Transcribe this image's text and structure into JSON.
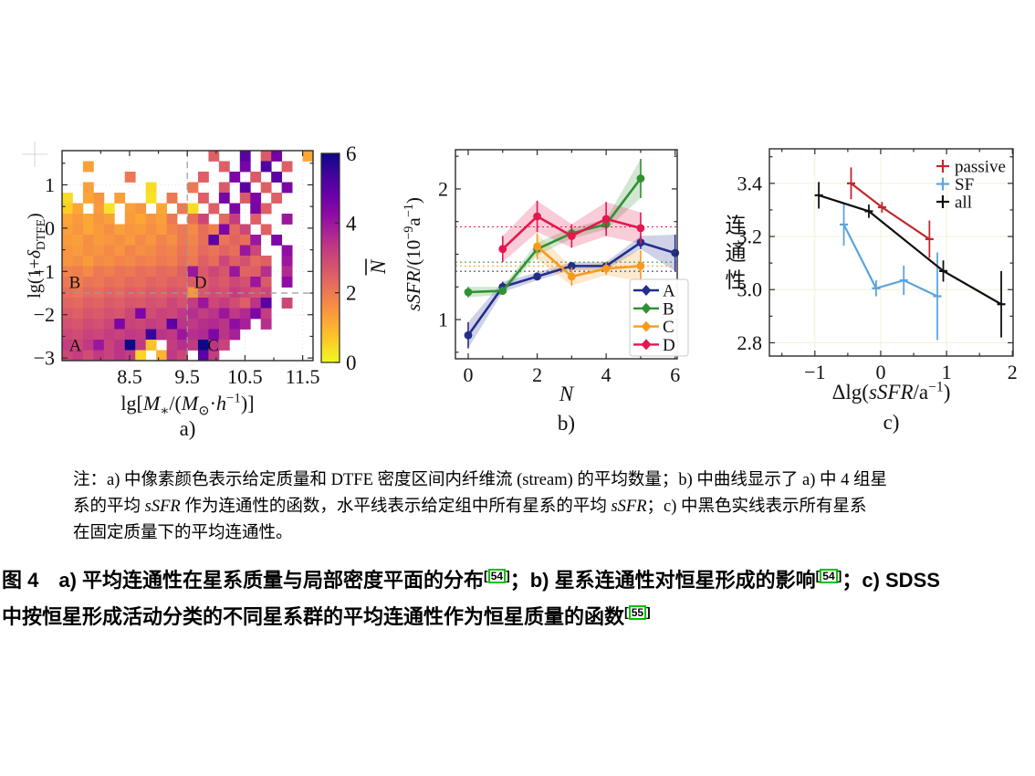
{
  "page": {
    "background": "#ffffff"
  },
  "chart_data": [
    {
      "type": "heatmap",
      "panel_label": "a)",
      "xlabel_text": "lg[M∗/(M⊙·h−1)]",
      "xlabel_parts": [
        {
          "t": "lg["
        },
        {
          "t": "M",
          "i": true
        },
        {
          "t": "∗",
          "sub": true
        },
        {
          "t": "/("
        },
        {
          "t": "M",
          "i": true
        },
        {
          "t": "⊙",
          "sub": true
        },
        {
          "t": "·"
        },
        {
          "t": "h",
          "i": true
        },
        {
          "t": "−1",
          "sup": true
        },
        {
          "t": ")]"
        }
      ],
      "ylabel_text": "lg(1+δDTFE)",
      "ylabel_parts": [
        {
          "t": "lg(1+"
        },
        {
          "t": "δ",
          "i": true
        },
        {
          "t": "DTFE",
          "sub": true
        },
        {
          "t": ")"
        }
      ],
      "xlim": [
        7.33,
        11.68
      ],
      "ylim": [
        -3.06,
        1.79
      ],
      "x_ticks": [
        8.5,
        9.5,
        10.5,
        11.5
      ],
      "x_tick_labels": [
        "8.5",
        "9.5",
        "10.5",
        "11.5"
      ],
      "x_minor": [
        8.0,
        9.0,
        10.0,
        11.0
      ],
      "y_ticks": [
        1,
        0,
        -1,
        -2,
        -3
      ],
      "y_tick_labels": [
        "1",
        "0",
        "−1",
        "−2",
        "−3"
      ],
      "y_minor": [
        1.5,
        0.5,
        -0.5,
        -1.5,
        -2.5
      ],
      "dashed": {
        "vline_x": 9.5,
        "hline_y": -1.5
      },
      "region_labels": [
        {
          "text": "A",
          "x": 7.45,
          "y": -2.84
        },
        {
          "text": "B",
          "x": 7.45,
          "y": -1.38
        },
        {
          "text": "C",
          "x": 9.85,
          "y": -2.84
        },
        {
          "text": "D",
          "x": 9.62,
          "y": -1.38
        }
      ],
      "colorbar": {
        "label": "N̄",
        "label_letter": "N",
        "min": 0,
        "max": 6,
        "ticks": [
          0,
          2,
          4,
          6
        ],
        "tick_labels": [
          "0",
          "2",
          "4",
          "6"
        ]
      },
      "grid": {
        "x0": 7.33,
        "dx": 0.18125,
        "y_top": 1.79,
        "dy": 0.2425,
        "values": [
          [
            null,
            null,
            null,
            null,
            null,
            null,
            null,
            null,
            null,
            null,
            null,
            null,
            null,
            null,
            2.5,
            null,
            null,
            5,
            null,
            2.6,
            4.6,
            null,
            null,
            1.2
          ],
          [
            null,
            null,
            1.3,
            null,
            null,
            null,
            null,
            null,
            null,
            null,
            null,
            null,
            null,
            null,
            null,
            2.5,
            null,
            4.6,
            null,
            5.2,
            null,
            2.5,
            null,
            null
          ],
          [
            null,
            null,
            null,
            null,
            null,
            null,
            2,
            null,
            null,
            null,
            null,
            null,
            null,
            2.5,
            null,
            null,
            4.5,
            null,
            2.6,
            null,
            5,
            null,
            null,
            null
          ],
          [
            null,
            null,
            1.3,
            null,
            null,
            null,
            null,
            null,
            0.4,
            null,
            null,
            null,
            2,
            null,
            null,
            2.6,
            null,
            5,
            null,
            2.5,
            null,
            4.5,
            null,
            null
          ],
          [
            0.4,
            null,
            1.2,
            1.5,
            null,
            1.3,
            null,
            null,
            0.3,
            null,
            2,
            null,
            null,
            2.5,
            null,
            4.6,
            null,
            2.6,
            4.5,
            null,
            2.5,
            null,
            null,
            null
          ],
          [
            0.6,
            1.2,
            null,
            1.4,
            0.3,
            null,
            1.3,
            1.5,
            null,
            1.2,
            null,
            2,
            0.4,
            null,
            2.5,
            null,
            4.5,
            null,
            4.6,
            2.5,
            null,
            null,
            null,
            null
          ],
          [
            1.2,
            1.4,
            1.2,
            1.5,
            1.3,
            null,
            1.4,
            1.2,
            1.5,
            1.3,
            2,
            null,
            2.2,
            3,
            null,
            2.3,
            3.2,
            null,
            2.5,
            null,
            null,
            4,
            null,
            null
          ],
          [
            1.3,
            1.5,
            1.2,
            1.4,
            1.6,
            1.3,
            1.5,
            1.4,
            1.6,
            1.4,
            1.8,
            2,
            1.7,
            2.2,
            1.9,
            4.5,
            2.3,
            3,
            null,
            2.5,
            null,
            null,
            null,
            null
          ],
          [
            1.4,
            1.3,
            1.6,
            1.4,
            1.5,
            1.6,
            1.4,
            1.7,
            1.5,
            1.8,
            1.6,
            2,
            1.8,
            2.2,
            5,
            2.1,
            2.4,
            2.2,
            4,
            null,
            4.5,
            null,
            null,
            null
          ],
          [
            1.5,
            1.4,
            1.6,
            1.5,
            1.7,
            1.5,
            1.8,
            1.6,
            1.7,
            1.9,
            1.8,
            2.1,
            1.9,
            2.3,
            2.1,
            2.4,
            2.2,
            4,
            3,
            null,
            null,
            4.2,
            null,
            null
          ],
          [
            1.5,
            1.6,
            1.4,
            1.7,
            1.6,
            1.8,
            1.7,
            1.9,
            1.8,
            2,
            1.9,
            2.2,
            2,
            2.5,
            2.2,
            3,
            2.5,
            2.8,
            2.3,
            2.5,
            null,
            4,
            null,
            null
          ],
          [
            1.8,
            1.9,
            1.7,
            2,
            1.9,
            2.1,
            2,
            2.2,
            2.1,
            2.3,
            2.2,
            2.5,
            4,
            2.6,
            3,
            2.7,
            4,
            2.4,
            2.5,
            3.5,
            null,
            3.6,
            null,
            null
          ],
          [
            2,
            1.9,
            2.1,
            2,
            2.2,
            2.1,
            2.3,
            2.2,
            2.4,
            2.3,
            2.5,
            2.4,
            2.6,
            2.5,
            2.8,
            2.6,
            3,
            2.8,
            4,
            2.6,
            null,
            4.2,
            null,
            null
          ],
          [
            2.2,
            2.1,
            2.3,
            2.2,
            2.4,
            2.3,
            2.5,
            2.4,
            2.6,
            2.5,
            2.7,
            2.6,
            1.5,
            2.7,
            2.9,
            2.8,
            3.2,
            3,
            2.8,
            3,
            null,
            null,
            null,
            null
          ],
          [
            2.4,
            2.3,
            2.5,
            2.4,
            2.6,
            2.5,
            2.7,
            2.6,
            2.8,
            2.7,
            3,
            2.8,
            3.2,
            4,
            3,
            3.2,
            2.9,
            2.5,
            3.4,
            5,
            null,
            3,
            null,
            null
          ],
          [
            2.6,
            2.5,
            2.7,
            2.6,
            2.8,
            2.7,
            3,
            4.5,
            2.9,
            3.1,
            3,
            3.3,
            3.5,
            3.2,
            3.4,
            4,
            3.3,
            3.6,
            4.5,
            3.2,
            null,
            null,
            null,
            null
          ],
          [
            2.8,
            2.7,
            2.9,
            2.8,
            3,
            4.5,
            3.1,
            3,
            3.2,
            3.1,
            5,
            3.4,
            3.3,
            3.5,
            3.6,
            3.4,
            4.2,
            3.8,
            null,
            3.5,
            null,
            null,
            null,
            null
          ],
          [
            3,
            2.9,
            3.1,
            3,
            3.2,
            3.1,
            3.3,
            3.2,
            5.5,
            3.4,
            3.3,
            4,
            3.5,
            3.6,
            4.5,
            3.4,
            3.8,
            null,
            null,
            null,
            null,
            null,
            null,
            null
          ],
          [
            3.2,
            3,
            3.3,
            4,
            3.1,
            3.4,
            6,
            3.3,
            0.8,
            null,
            3.2,
            3.5,
            3.3,
            6,
            3.4,
            3.1,
            null,
            null,
            null,
            null,
            null,
            null,
            null,
            null
          ],
          [
            3,
            3.2,
            2.9,
            3.3,
            3.1,
            3.4,
            3.2,
            0.5,
            null,
            1,
            3.3,
            3,
            null,
            5,
            3.2,
            null,
            null,
            null,
            null,
            null,
            null,
            null,
            null,
            null
          ]
        ]
      }
    },
    {
      "type": "line",
      "panel_label": "b)",
      "xlabel_parts": [
        {
          "t": "N",
          "i": true
        }
      ],
      "ylabel_text": "sSFR/(10−9a−1)",
      "ylabel_parts": [
        {
          "t": "sSFR",
          "i": true
        },
        {
          "t": "/(10"
        },
        {
          "t": "−9",
          "sup": true
        },
        {
          "t": "a"
        },
        {
          "t": "−1",
          "sup": true
        },
        {
          "t": ")"
        }
      ],
      "xlim": [
        -0.37,
        6.06
      ],
      "ylim": [
        0.7,
        2.3
      ],
      "x_ticks": [
        0,
        2,
        4,
        6
      ],
      "x_tick_labels": [
        "0",
        "2",
        "4",
        "6"
      ],
      "x_minor": [
        1,
        3,
        5
      ],
      "y_ticks": [
        1,
        2
      ],
      "y_tick_labels": [
        "1",
        "2"
      ],
      "y_minor": [
        0.75,
        1.25,
        1.5,
        1.75,
        2.25
      ],
      "series": [
        {
          "name": "A",
          "color": "#232e8c",
          "x": [
            0,
            1,
            2,
            3,
            4,
            5,
            6
          ],
          "y": [
            0.88,
            1.25,
            1.33,
            1.41,
            1.41,
            1.59,
            1.51
          ],
          "err": [
            0.1,
            0.04,
            0.03,
            0.03,
            0.03,
            0.05,
            0.14
          ],
          "mean": 1.37
        },
        {
          "name": "B",
          "color": "#2f9133",
          "x": [
            0,
            1,
            2,
            3,
            4,
            5
          ],
          "y": [
            1.21,
            1.22,
            1.54,
            1.66,
            1.73,
            2.08
          ],
          "err": [
            0.04,
            0.03,
            0.05,
            0.04,
            0.04,
            0.15
          ],
          "mean": 1.44
        },
        {
          "name": "C",
          "color": "#f79b1e",
          "x": [
            2,
            3,
            4,
            5
          ],
          "y": [
            1.56,
            1.33,
            1.39,
            1.41
          ],
          "err": [
            0.1,
            0.07,
            0.05,
            0.12
          ],
          "mean": 1.41
        },
        {
          "name": "D",
          "color": "#e4174e",
          "x": [
            1,
            2,
            3,
            4,
            5
          ],
          "y": [
            1.54,
            1.79,
            1.64,
            1.77,
            1.7
          ],
          "err": [
            0.1,
            0.12,
            0.09,
            0.13,
            0.12
          ],
          "mean": 1.71
        }
      ],
      "legend": [
        "A",
        "B",
        "C",
        "D"
      ]
    },
    {
      "type": "errorline",
      "panel_label": "c)",
      "xlabel_parts": [
        {
          "t": "Δlg("
        },
        {
          "t": "sSFR",
          "i": true
        },
        {
          "t": "/a"
        },
        {
          "t": "−1",
          "sup": true
        },
        {
          "t": ")"
        }
      ],
      "ylabel_text": "连通性",
      "ylabel_chars": [
        "连",
        "通",
        "性"
      ],
      "xlim": [
        -1.69,
        2.01
      ],
      "ylim": [
        2.75,
        3.53
      ],
      "x_ticks": [
        -1,
        0,
        1,
        2
      ],
      "x_tick_labels": [
        "−1",
        "0",
        "1",
        "2"
      ],
      "x_minor": [
        -1.5,
        -0.5,
        0.5,
        1.5
      ],
      "y_ticks": [
        2.8,
        3.0,
        3.2,
        3.4
      ],
      "y_tick_labels": [
        "2.8",
        "3.0",
        "3.2",
        "3.4"
      ],
      "y_minor": [
        2.9,
        3.1,
        3.3,
        3.5
      ],
      "series": [
        {
          "name": "passive",
          "color": "#c1272d",
          "x": [
            -0.45,
            0.02,
            0.74
          ],
          "y": [
            3.4,
            3.31,
            3.19
          ],
          "err": [
            0.06,
            0.02,
            0.07
          ]
        },
        {
          "name": "SF",
          "color": "#5ca4dc",
          "x": [
            -0.56,
            -0.07,
            0.35,
            0.86
          ],
          "y": [
            3.245,
            3.005,
            3.035,
            2.975
          ],
          "err": [
            0.08,
            0.03,
            0.055,
            0.165
          ]
        },
        {
          "name": "all",
          "color": "#0f0f0f",
          "x": [
            -0.94,
            -0.18,
            0.95,
            1.83
          ],
          "y": [
            3.355,
            3.295,
            3.07,
            2.945
          ],
          "err": [
            0.05,
            0.025,
            0.04,
            0.125
          ]
        }
      ],
      "legend": [
        "passive",
        "SF",
        "all"
      ]
    }
  ],
  "note": {
    "lines": [
      [
        {
          "t": "注：a) 中像素颜色表示给定质量和 DTFE 密度区间内纤维流 (stream) 的平均数量；b) 中曲线显示了 a) 中 4 组星"
        }
      ],
      [
        {
          "t": "系的平均 "
        },
        {
          "t": "sSFR",
          "i": true
        },
        {
          "t": " 作为连通性的函数，水平线表示给定组中所有星系的平均 "
        },
        {
          "t": "sSFR",
          "i": true
        },
        {
          "t": "；c) 中黑色实线表示所有星系"
        }
      ],
      [
        {
          "t": "在固定质量下的平均连通性。"
        }
      ]
    ]
  },
  "caption": {
    "lines": [
      [
        {
          "t": "图 4　a) 平均连通性在星系质量与局部密度平面的分布"
        },
        {
          "cite": "54"
        },
        {
          "t": "；b) 星系连通性对恒星形成的影响"
        },
        {
          "cite": "54"
        },
        {
          "t": "；c) SDSS"
        }
      ],
      [
        {
          "t": "中按恒星形成活动分类的不同星系群的平均连通性作为恒星质量的函数"
        },
        {
          "cite": "55"
        }
      ]
    ],
    "cite_box_color": "#00c300"
  }
}
